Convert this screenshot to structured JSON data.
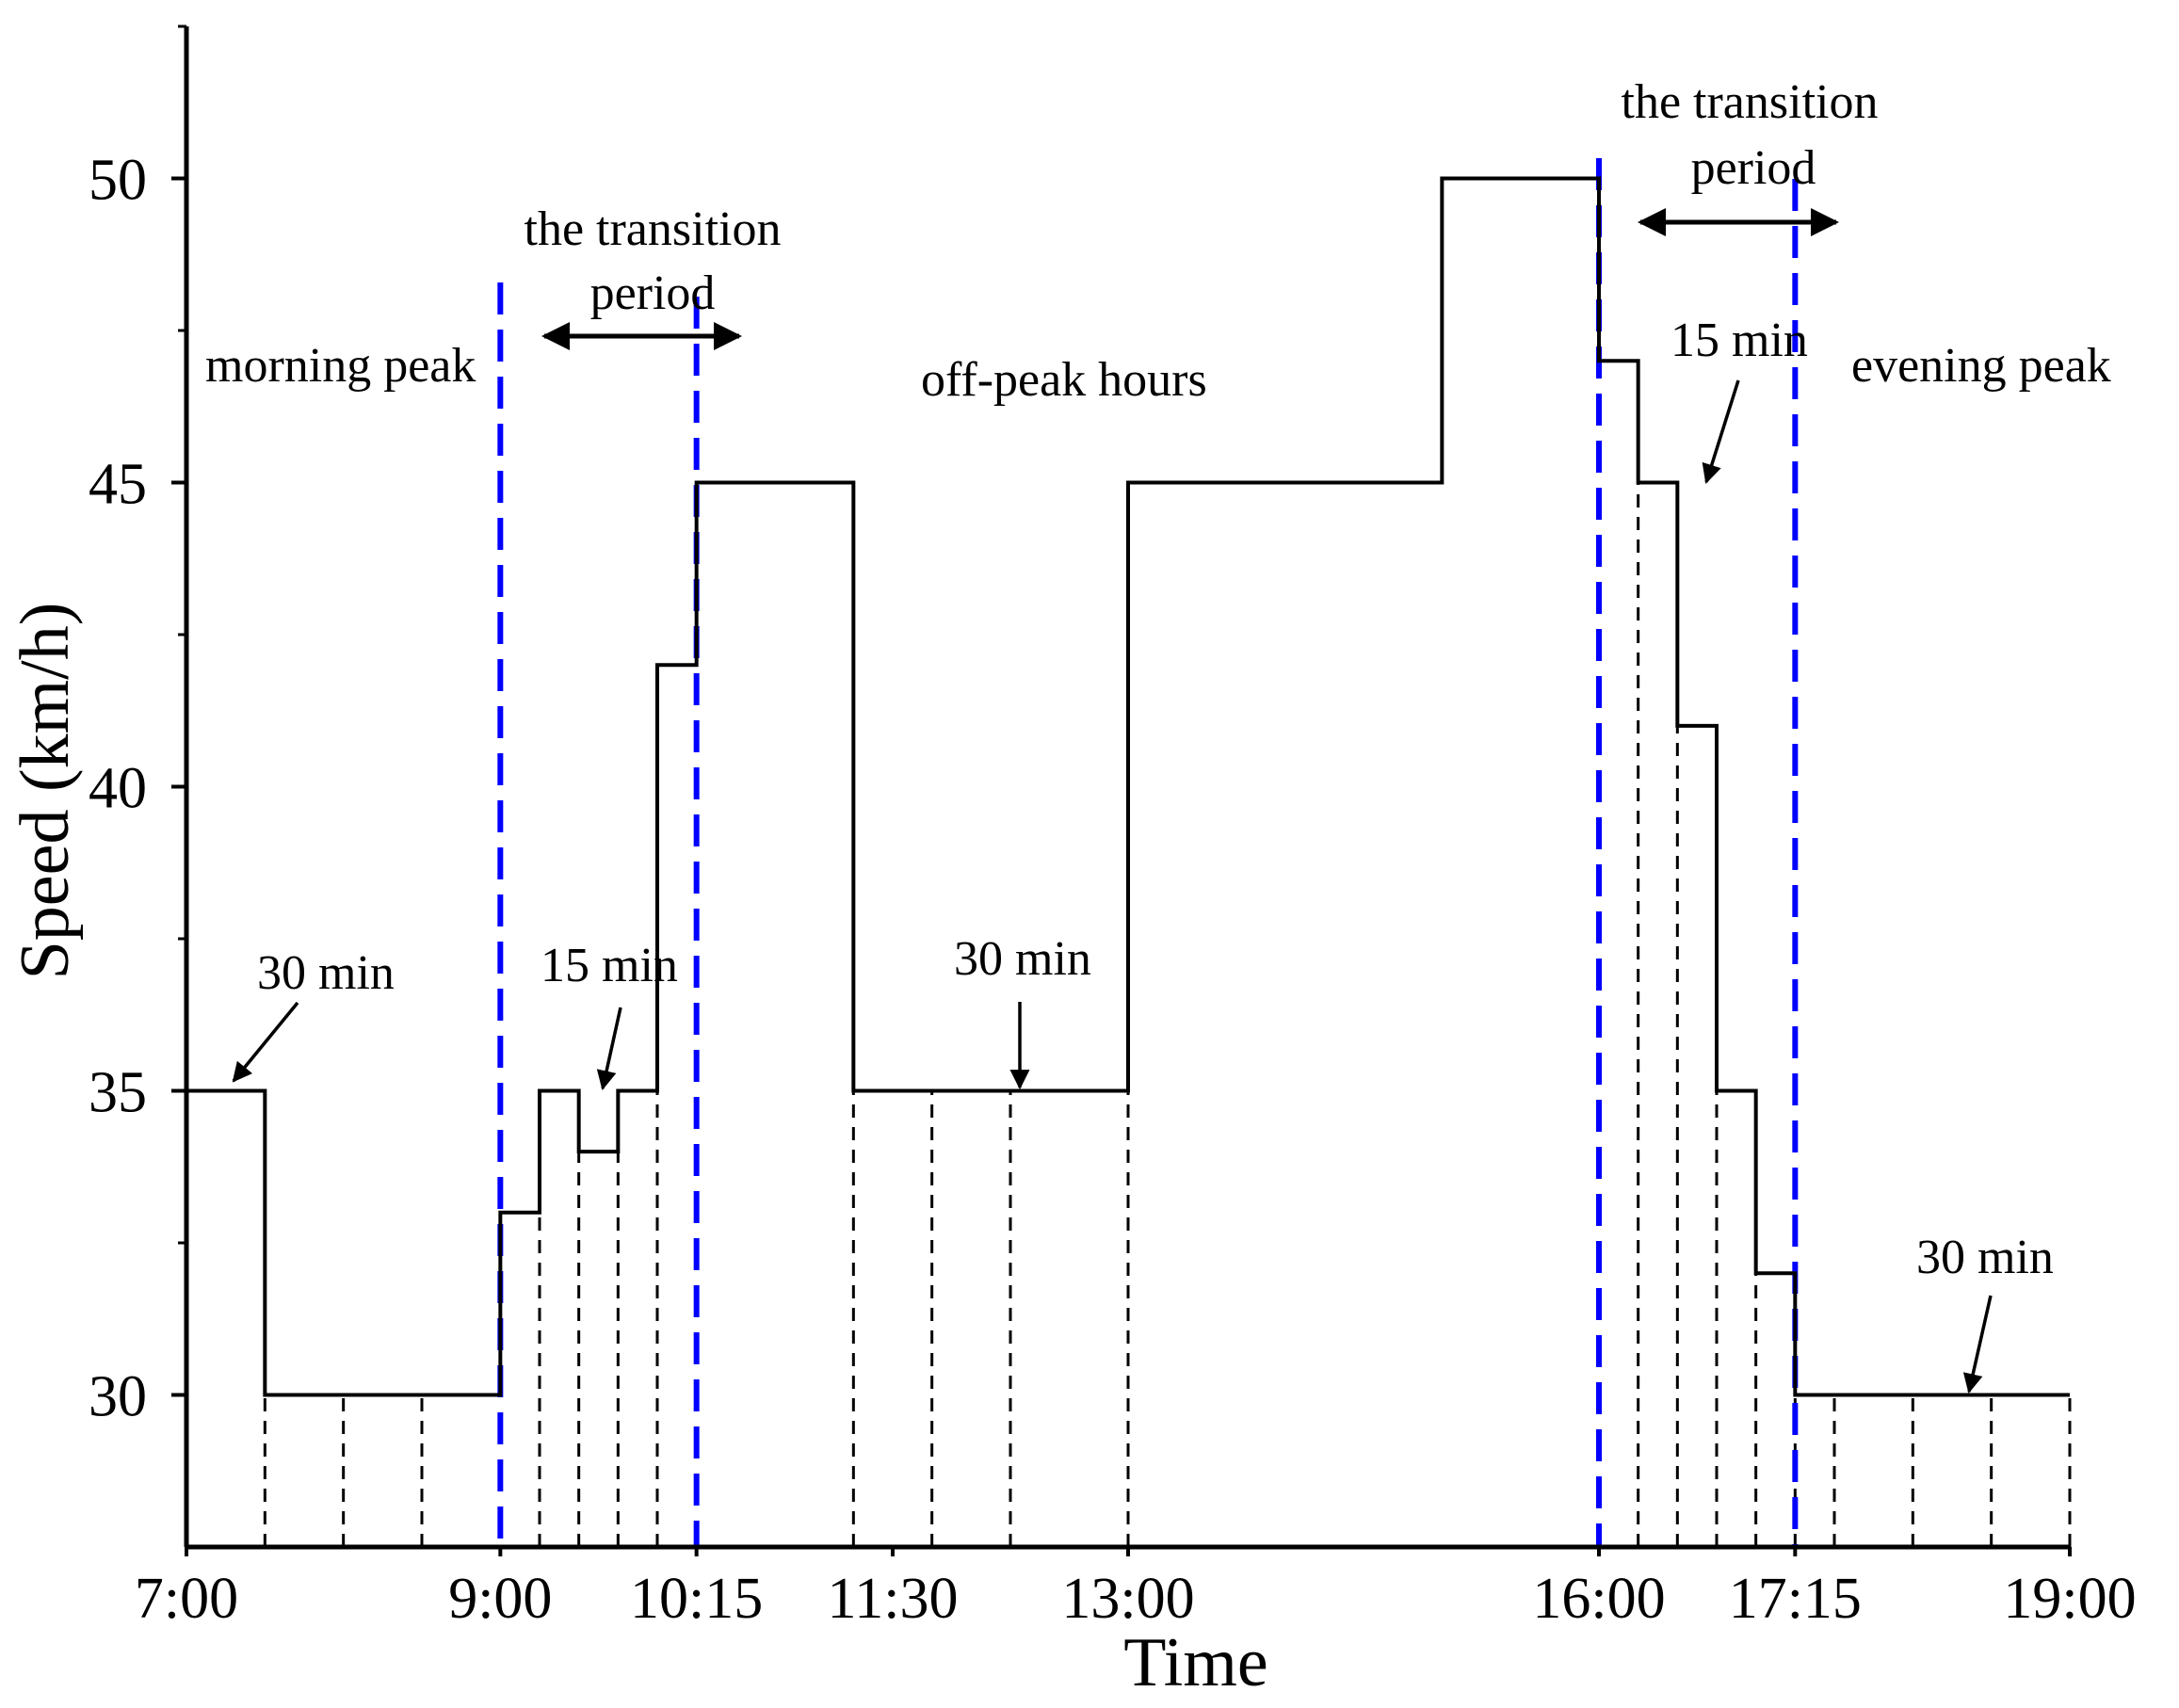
{
  "chart_data": {
    "type": "line",
    "style": "step",
    "title": "",
    "xlabel": "Time",
    "ylabel": "Speed (km/h)",
    "xlim_hours": [
      7.0,
      19.0
    ],
    "ylim": [
      27.5,
      52.5
    ],
    "x_tick_labels": [
      {
        "hour": 7.0,
        "label": "7:00"
      },
      {
        "hour": 9.0,
        "label": "9:00"
      },
      {
        "hour": 10.25,
        "label": "10:15"
      },
      {
        "hour": 11.5,
        "label": "11:30"
      },
      {
        "hour": 13.0,
        "label": "13:00"
      },
      {
        "hour": 16.0,
        "label": "16:00"
      },
      {
        "hour": 17.25,
        "label": "17:15"
      },
      {
        "hour": 19.0,
        "label": "19:00"
      }
    ],
    "y_ticks": [
      30,
      35,
      40,
      45,
      50
    ],
    "series": [
      {
        "name": "Speed",
        "steps": [
          {
            "start": 7.0,
            "end": 7.5,
            "speed": 35
          },
          {
            "start": 7.5,
            "end": 9.0,
            "speed": 30
          },
          {
            "start": 9.0,
            "end": 9.25,
            "speed": 33
          },
          {
            "start": 9.25,
            "end": 9.5,
            "speed": 35
          },
          {
            "start": 9.5,
            "end": 9.75,
            "speed": 34
          },
          {
            "start": 9.75,
            "end": 10.0,
            "speed": 35
          },
          {
            "start": 10.0,
            "end": 10.25,
            "speed": 42
          },
          {
            "start": 10.25,
            "end": 11.25,
            "speed": 45
          },
          {
            "start": 11.25,
            "end": 13.0,
            "speed": 35
          },
          {
            "start": 13.0,
            "end": 15.0,
            "speed": 45
          },
          {
            "start": 15.0,
            "end": 16.0,
            "speed": 50
          },
          {
            "start": 16.0,
            "end": 16.25,
            "speed": 47
          },
          {
            "start": 16.25,
            "end": 16.5,
            "speed": 45
          },
          {
            "start": 16.5,
            "end": 16.75,
            "speed": 41
          },
          {
            "start": 16.75,
            "end": 17.0,
            "speed": 35
          },
          {
            "start": 17.0,
            "end": 17.25,
            "speed": 32
          },
          {
            "start": 17.25,
            "end": 19.0,
            "speed": 30
          }
        ]
      }
    ],
    "interval_dividers_hours": [
      7.5,
      8.0,
      8.5,
      9.25,
      9.5,
      9.75,
      10.0,
      11.25,
      11.75,
      12.25,
      13.0,
      16.25,
      16.5,
      16.75,
      17.0,
      17.25,
      17.5,
      18.0,
      18.5,
      19.0
    ],
    "transition_boundaries_hours": [
      9.0,
      10.25,
      16.0,
      17.25
    ],
    "colors": {
      "line": "#000000",
      "transition_boundary": "#0000ff",
      "divider": "#000000"
    },
    "annotations": {
      "morning_peak": "morning peak",
      "transition_1_line1": "the transition",
      "transition_1_line2": "period",
      "off_peak": "off-peak hours",
      "transition_2_line1": "the transition",
      "transition_2_line2": "period",
      "evening_peak": "evening peak",
      "interval_30_a": "30 min",
      "interval_15_a": "15 min",
      "interval_30_b": "30 min",
      "interval_15_b": "15 min",
      "interval_30_c": "30 min"
    }
  }
}
